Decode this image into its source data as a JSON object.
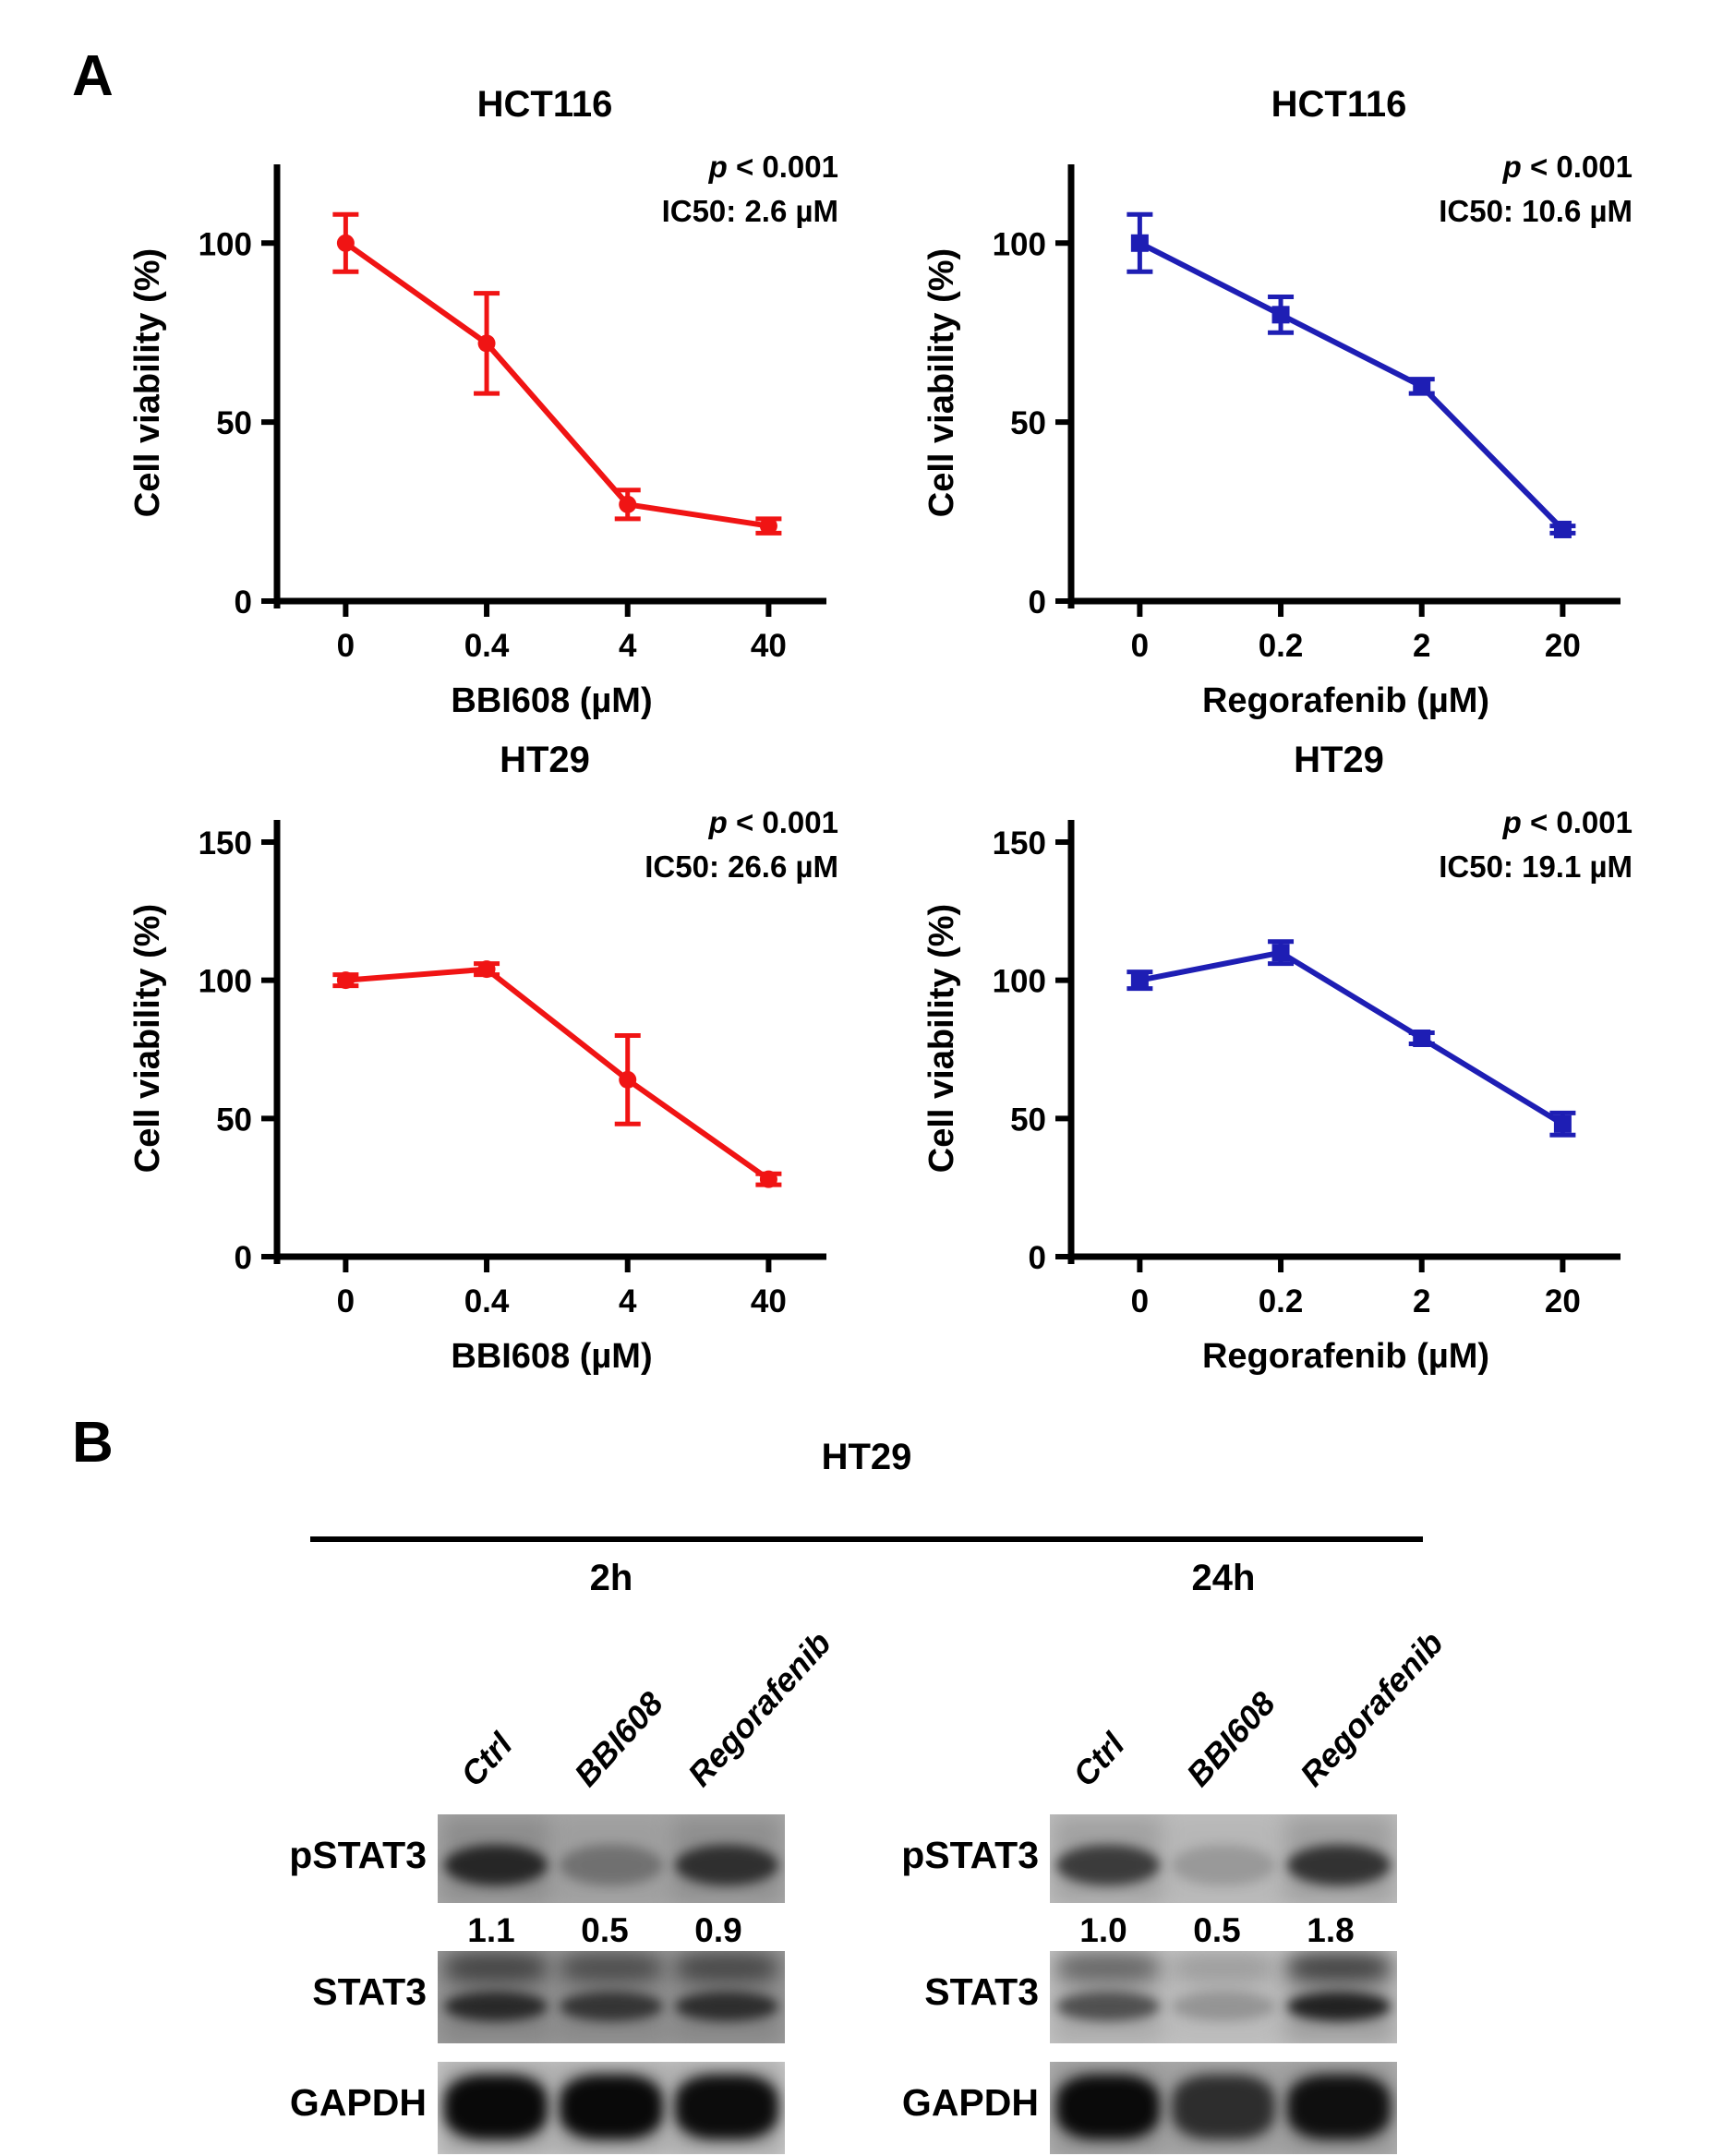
{
  "figure": {
    "panel_a_label": "A",
    "panel_b_label": "B"
  },
  "chart_data": [
    {
      "type": "line",
      "title": "HCT116",
      "p_symbol": "p",
      "p_text": " < 0.001",
      "ic50_text": "IC50: 2.6 µM",
      "color": "#f01414",
      "marker": "circle",
      "xlabel": "BBI608 (µM)",
      "ylabel": "Cell viability (%)",
      "categories": [
        "0",
        "0.4",
        "4",
        "40"
      ],
      "values": [
        100,
        72,
        27,
        21
      ],
      "errors": [
        8,
        14,
        4,
        2
      ],
      "yticks": [
        0,
        50,
        100
      ],
      "ylim": [
        0,
        122
      ],
      "ymax": 122
    },
    {
      "type": "line",
      "title": "HCT116",
      "p_symbol": "p",
      "p_text": " < 0.001",
      "ic50_text": "IC50: 10.6 µM",
      "color": "#1e1eb4",
      "marker": "square",
      "xlabel": "Regorafenib (µM)",
      "ylabel": "Cell viability (%)",
      "categories": [
        "0",
        "0.2",
        "2",
        "20"
      ],
      "values": [
        100,
        80,
        60,
        20
      ],
      "errors": [
        8,
        5,
        2,
        1
      ],
      "yticks": [
        0,
        50,
        100
      ],
      "ylim": [
        0,
        122
      ],
      "ymax": 122
    },
    {
      "type": "line",
      "title": "HT29",
      "p_symbol": "p",
      "p_text": " < 0.001",
      "ic50_text": "IC50: 26.6 µM",
      "color": "#f01414",
      "marker": "circle",
      "xlabel": "BBI608 (µM)",
      "ylabel": "Cell viability (%)",
      "categories": [
        "0",
        "0.4",
        "4",
        "40"
      ],
      "values": [
        100,
        104,
        64,
        28
      ],
      "errors": [
        2,
        2,
        16,
        2
      ],
      "yticks": [
        0,
        50,
        100,
        150
      ],
      "ylim": [
        0,
        158
      ],
      "ymax": 158
    },
    {
      "type": "line",
      "title": "HT29",
      "p_symbol": "p",
      "p_text": " < 0.001",
      "ic50_text": "IC50: 19.1 µM",
      "color": "#1e1eb4",
      "marker": "square",
      "xlabel": "Regorafenib (µM)",
      "ylabel": "Cell viability (%)",
      "categories": [
        "0",
        "0.2",
        "2",
        "20"
      ],
      "values": [
        100,
        110,
        79,
        48
      ],
      "errors": [
        3,
        4,
        2,
        4
      ],
      "yticks": [
        0,
        50,
        100,
        150
      ],
      "ylim": [
        0,
        158
      ],
      "ymax": 158
    }
  ],
  "panel_b": {
    "cell_line": "HT29",
    "row_labels": [
      "pSTAT3",
      "STAT3",
      "GAPDH"
    ],
    "groups": [
      {
        "time": "2h",
        "lane_labels": [
          "Ctrl",
          "BBI608",
          "Regorafenib"
        ],
        "pstat3_quant": [
          "1.1",
          "0.5",
          "0.9"
        ],
        "blots": {
          "pSTAT3": {
            "bg": "#a9a9a9",
            "band_type": "single",
            "intensities": [
              0.85,
              0.32,
              0.78
            ]
          },
          "STAT3": {
            "bg": "#9c9c9c",
            "band_type": "double",
            "intensities": [
              0.82,
              0.72,
              0.78
            ]
          },
          "GAPDH": {
            "bg": "#cccccc",
            "band_type": "blob",
            "intensities": [
              0.97,
              0.97,
              0.95
            ]
          }
        }
      },
      {
        "time": "24h",
        "lane_labels": [
          "Ctrl",
          "BBI608",
          "Regorafenib"
        ],
        "pstat3_quant": [
          "1.0",
          "0.5",
          "1.8"
        ],
        "blots": {
          "pSTAT3": {
            "bg": "#bfbfbf",
            "band_type": "single",
            "intensities": [
              0.72,
              0.18,
              0.78
            ]
          },
          "STAT3": {
            "bg": "#c4c4c4",
            "band_type": "double",
            "intensities": [
              0.6,
              0.22,
              0.9
            ]
          },
          "GAPDH": {
            "bg": "#b2b2b2",
            "band_type": "blob",
            "intensities": [
              0.96,
              0.72,
              0.92
            ]
          }
        }
      }
    ]
  }
}
